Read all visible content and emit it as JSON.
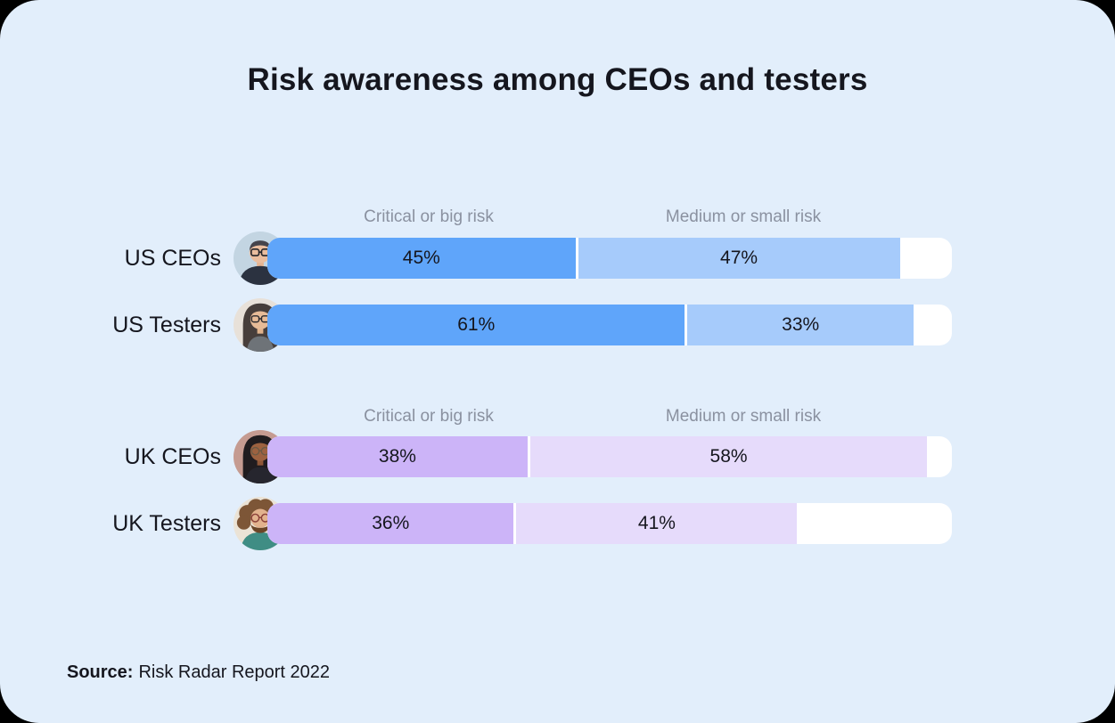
{
  "title": "Risk awareness among CEOs and testers",
  "source": {
    "label": "Source:",
    "text": "Risk Radar Report 2022"
  },
  "colors": {
    "card_background": "#E2EEFB",
    "bar_track": "#FFFFFF",
    "text_primary": "#15161E",
    "column_header_gray": "#8A91A0",
    "us_critical": "#5FA5FA",
    "us_medium": "#A6CBFB",
    "uk_critical": "#CCB4F8",
    "uk_medium": "#E6DBFB"
  },
  "chart_data": {
    "type": "bar",
    "orientation": "horizontal",
    "stacked": true,
    "value_unit": "%",
    "axis_max": 100,
    "grid": false,
    "column_headers": [
      "Critical or big risk",
      "Medium or small risk"
    ],
    "series_names": [
      "Critical or big risk",
      "Medium or small risk"
    ],
    "groups": [
      {
        "region": "US",
        "palette": {
          "critical": "#5FA5FA",
          "medium": "#A6CBFB"
        },
        "rows": [
          {
            "label": "US CEOs",
            "avatar": "man-short-hair-glasses-suit",
            "critical": 45,
            "medium": 47
          },
          {
            "label": "US Testers",
            "avatar": "woman-long-dark-hair-glasses",
            "critical": 61,
            "medium": 33
          }
        ]
      },
      {
        "region": "UK",
        "palette": {
          "critical": "#CCB4F8",
          "medium": "#E6DBFB"
        },
        "rows": [
          {
            "label": "UK CEOs",
            "avatar": "woman-dark-hair-glasses-blazer",
            "critical": 38,
            "medium": 58
          },
          {
            "label": "UK Testers",
            "avatar": "man-curly-hair-beard-glasses",
            "critical": 36,
            "medium": 41
          }
        ]
      }
    ]
  }
}
